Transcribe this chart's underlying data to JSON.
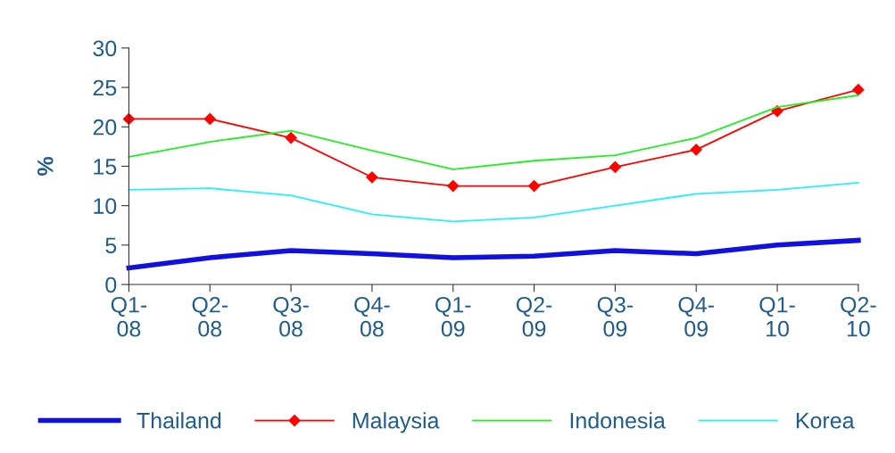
{
  "chart_data": {
    "type": "line",
    "ylabel": "%",
    "categories": [
      "Q1-\n08",
      "Q2-\n08",
      "Q3-\n08",
      "Q4-\n08",
      "Q1-\n09",
      "Q2-\n09",
      "Q3-\n09",
      "Q4-\n09",
      "Q1-\n10",
      "Q2-\n10"
    ],
    "series": [
      {
        "name": "Thailand",
        "color": "#1010e0",
        "marker": "none",
        "values": [
          2.1,
          3.4,
          4.3,
          3.9,
          3.4,
          3.6,
          4.3,
          3.9,
          5.0,
          5.6
        ]
      },
      {
        "name": "Malaysia",
        "color": "#ff0000",
        "marker": "diamond",
        "values": [
          21.0,
          21.0,
          18.6,
          13.6,
          12.5,
          12.5,
          14.9,
          17.1,
          22.0,
          24.7
        ]
      },
      {
        "name": "Indonesia",
        "color": "#22ee22",
        "marker": "none",
        "values": [
          16.2,
          18.1,
          19.5,
          17.0,
          14.6,
          15.7,
          16.4,
          18.6,
          22.5,
          24.0
        ]
      },
      {
        "name": "Korea",
        "color": "#22f0ff",
        "marker": "none",
        "values": [
          12.0,
          12.2,
          11.3,
          8.9,
          8.0,
          8.5,
          10.0,
          11.5,
          12.0,
          12.9
        ]
      }
    ],
    "ylim": [
      0,
      30
    ],
    "yticks": [
      0,
      5,
      10,
      15,
      20,
      25,
      30
    ],
    "grid": false,
    "legend": "bottom"
  }
}
